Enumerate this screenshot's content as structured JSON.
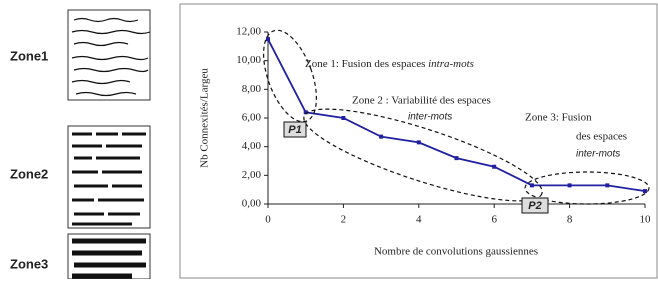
{
  "chart_data": {
    "type": "line",
    "ylabel": "Nb Connexités/Largeu",
    "xlabel": "Nombre de convolutions gaussiennes",
    "x": [
      0,
      1,
      2,
      3,
      4,
      5,
      6,
      7,
      8,
      9,
      10
    ],
    "series": [
      {
        "color": "#2020a0",
        "values": [
          11.5,
          6.4,
          6.0,
          4.7,
          4.3,
          3.2,
          2.6,
          1.3,
          1.3,
          1.3,
          0.9
        ]
      }
    ],
    "xlim": [
      0,
      10
    ],
    "xticks": [
      0,
      2,
      4,
      6,
      8,
      10
    ],
    "ylim": [
      0,
      12
    ],
    "yticks": [
      {
        "value": 0,
        "label": "0,00"
      },
      {
        "value": 2,
        "label": "2,00"
      },
      {
        "value": 4,
        "label": "4,00"
      },
      {
        "value": 6,
        "label": "6,00"
      },
      {
        "value": 8,
        "label": "8,00"
      },
      {
        "value": 10,
        "label": "10,00"
      },
      {
        "value": 12,
        "label": "12,00"
      }
    ],
    "annotations": [
      {
        "text": "Zone 1: Fusion des espaces ",
        "italic": "intra-mots"
      },
      {
        "text": "Zone 2 : Variabilité des espaces",
        "italic": "inter-mots"
      },
      {
        "text": "Zone 3: Fusion",
        "text2": "des espaces",
        "italic": "inter-mots"
      }
    ],
    "points": [
      "P1",
      "P2"
    ]
  },
  "zones": [
    "Zone1",
    "Zone2",
    "Zone3"
  ]
}
